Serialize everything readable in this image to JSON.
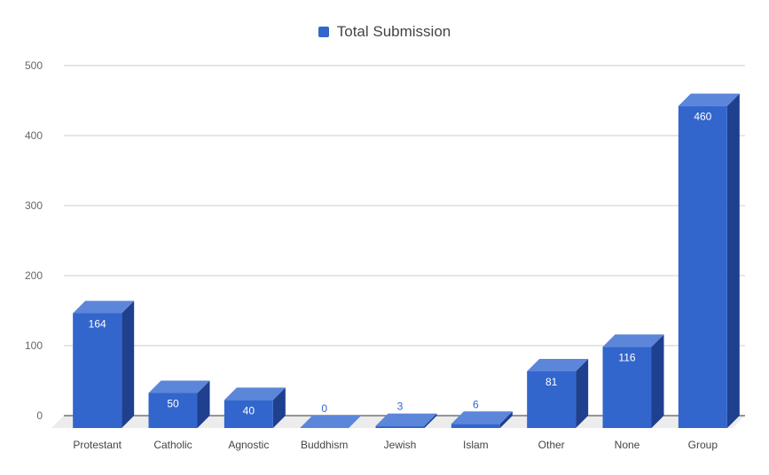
{
  "chart_data": {
    "type": "bar",
    "style": "3d",
    "categories": [
      "Protestant",
      "Catholic",
      "Agnostic",
      "Buddhism",
      "Jewish",
      "Islam",
      "Other",
      "None",
      "Group"
    ],
    "series": [
      {
        "name": "Total Submission",
        "values": [
          164,
          50,
          40,
          0,
          3,
          6,
          81,
          116,
          460
        ]
      }
    ],
    "data_labels": [
      "164",
      "50",
      "40",
      "0",
      "3",
      "6",
      "81",
      "116",
      "460"
    ],
    "y_ticks": [
      "0",
      "100",
      "200",
      "300",
      "400",
      "500"
    ],
    "ylim": [
      0,
      500
    ],
    "grid": true,
    "legend_position": "top",
    "colors": {
      "bar_front": "#3366cc",
      "bar_side": "#1f3f8f",
      "bar_top": "#5c86d9",
      "floor": "#ececec",
      "grid": "#cccccc",
      "label_inside": "#ffffff",
      "label_outside": "#3366cc"
    }
  }
}
